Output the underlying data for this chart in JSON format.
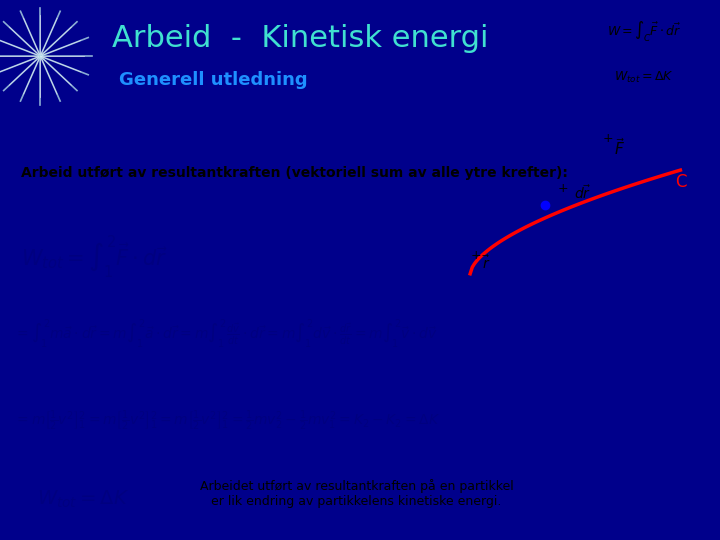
{
  "title": "Arbeid  -  Kinetisk energi",
  "subtitle": "Generell utledning",
  "header_bg": "#00008B",
  "header_text_color": "#40E0D0",
  "subtitle_color": "#00BFFF",
  "body_bg": "#C0C0C8",
  "separator_color": "#00CED1",
  "text_label": "Arbeid utført av resultantkraften (vektoriell sum av alle ytre krefter):",
  "formula_box_bg": "#D8D8D8",
  "bottom_note": "Arbeidet utført av resultantkraften på en partikkel\ner lik endring av partikkelens kinetiske energi.",
  "w_formula": "$W = \\int_C \\vec{F} \\cdot d\\vec{r}$",
  "wtot_formula": "$W_{tot} = \\Delta K$"
}
